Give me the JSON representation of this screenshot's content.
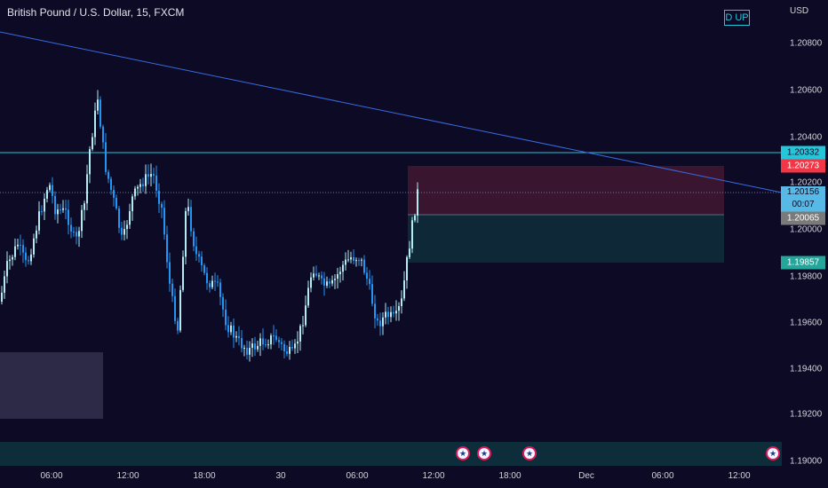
{
  "header": {
    "symbol_title": "British Pound / U.S. Dollar, 15, FXCM",
    "indicator_badge": "D UP",
    "currency": "USD"
  },
  "price_axis": {
    "ticks": [
      "1.20800",
      "1.20600",
      "1.20400",
      "1.20200",
      "1.20000",
      "1.19800",
      "1.19600",
      "1.19400",
      "1.19200",
      "1.19000"
    ]
  },
  "price_labels": {
    "resistance_line": {
      "value": "1.20332",
      "color": "#26c6da"
    },
    "stop_loss": {
      "value": "1.20273",
      "color": "#f23645"
    },
    "current_price": {
      "value": "1.20156",
      "countdown": "00:07",
      "color": "#56b9e6"
    },
    "entry": {
      "value": "1.20065",
      "color": "#7a7a7a"
    },
    "take_profit": {
      "value": "1.19857",
      "color": "#26a69a"
    }
  },
  "time_axis": {
    "ticks": [
      "06:00",
      "12:00",
      "18:00",
      "30",
      "06:00",
      "12:00",
      "18:00",
      "Dec",
      "06:00",
      "12:00"
    ]
  },
  "events": [
    {
      "icon": "us-flag-icon"
    },
    {
      "icon": "us-flag-icon"
    },
    {
      "icon": "us-flag-icon"
    },
    {
      "icon": "us-flag-icon"
    }
  ],
  "colors": {
    "background": "#0c0a24",
    "bull_candle": "#b2ebf2",
    "bear_candle": "#2196f3",
    "trendline": "#3a6ae0",
    "stop_zone": "#3a1530",
    "target_zone": "#0f2838"
  }
}
